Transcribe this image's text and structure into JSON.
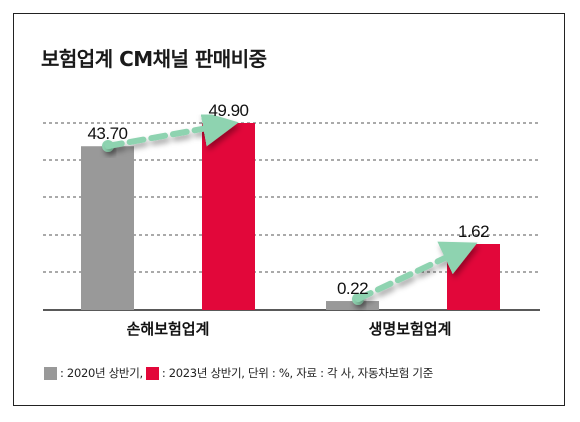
{
  "chart_data": {
    "type": "bar",
    "title": "보험업계 CM채널 판매비중",
    "categories": [
      "손해보험업계",
      "생명보험업계"
    ],
    "series": [
      {
        "name": "2020년 상반기",
        "values": [
          43.7,
          0.22
        ],
        "labels": [
          "43.70",
          "0.22"
        ],
        "color": "#999999"
      },
      {
        "name": "2023년 상반기",
        "values": [
          49.9,
          1.62
        ],
        "labels": [
          "49.90",
          "1.62"
        ],
        "color": "#e2073a"
      }
    ],
    "arrow_color": "#8ed3b0",
    "grid": true
  },
  "legend": {
    "item1": ": 2020년 상반기,",
    "item2": ": 2023년 상반기, 단위 : %, 자료 : 각 사, 자동차보험 기준"
  }
}
